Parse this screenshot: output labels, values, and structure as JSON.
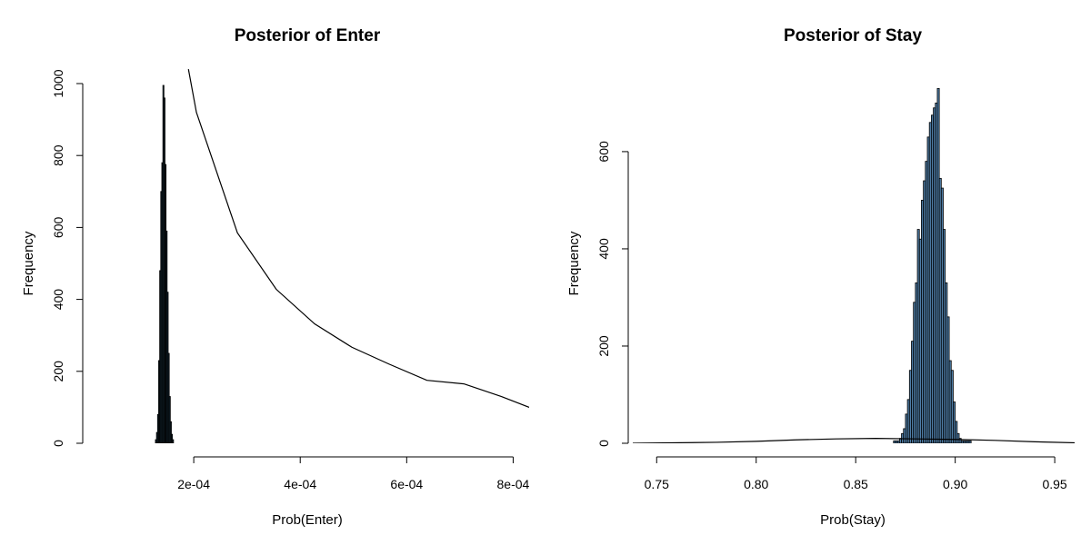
{
  "chart_data": [
    {
      "type": "bar",
      "title": "Posterior of Enter",
      "xlabel": "Prob(Enter)",
      "ylabel": "Frequency",
      "xlim": [
        0,
        0.00083
      ],
      "ylim": [
        0,
        1000
      ],
      "x_ticks": [
        {
          "value": 0.0002,
          "label": "2e-04"
        },
        {
          "value": 0.0004,
          "label": "4e-04"
        },
        {
          "value": 0.0006,
          "label": "6e-04"
        },
        {
          "value": 0.0008,
          "label": "8e-04"
        }
      ],
      "y_ticks": [
        {
          "value": 0,
          "label": "0"
        },
        {
          "value": 200,
          "label": "200"
        },
        {
          "value": 400,
          "label": "400"
        },
        {
          "value": 600,
          "label": "600"
        },
        {
          "value": 800,
          "label": "800"
        },
        {
          "value": 1000,
          "label": "1000"
        }
      ],
      "bar_fill": "#1e3a4a",
      "histogram": {
        "bin_width": 2e-06,
        "bins": [
          {
            "x": 0.000128,
            "count": 10
          },
          {
            "x": 0.00013,
            "count": 30
          },
          {
            "x": 0.000132,
            "count": 80
          },
          {
            "x": 0.000134,
            "count": 230
          },
          {
            "x": 0.000136,
            "count": 480
          },
          {
            "x": 0.000138,
            "count": 700
          },
          {
            "x": 0.00014,
            "count": 780
          },
          {
            "x": 0.000142,
            "count": 995
          },
          {
            "x": 0.000144,
            "count": 960
          },
          {
            "x": 0.000146,
            "count": 775
          },
          {
            "x": 0.000148,
            "count": 590
          },
          {
            "x": 0.00015,
            "count": 420
          },
          {
            "x": 0.000152,
            "count": 250
          },
          {
            "x": 0.000154,
            "count": 130
          },
          {
            "x": 0.000156,
            "count": 60
          },
          {
            "x": 0.000158,
            "count": 25
          },
          {
            "x": 0.00016,
            "count": 10
          }
        ]
      },
      "line": {
        "x": [
          0.00019,
          0.000205,
          0.000282,
          0.000355,
          0.000427,
          0.000497,
          0.000567,
          0.000638,
          0.000708,
          0.000778,
          0.00083
        ],
        "y": [
          1040,
          920,
          585,
          428,
          332,
          267,
          220,
          175,
          165,
          130,
          100
        ]
      }
    },
    {
      "type": "bar",
      "title": "Posterior of Stay",
      "xlabel": "Prob(Stay)",
      "ylabel": "Frequency",
      "xlim": [
        0.738,
        0.96
      ],
      "ylim": [
        0,
        740
      ],
      "x_ticks": [
        {
          "value": 0.75,
          "label": "0.75"
        },
        {
          "value": 0.8,
          "label": "0.80"
        },
        {
          "value": 0.85,
          "label": "0.85"
        },
        {
          "value": 0.9,
          "label": "0.90"
        },
        {
          "value": 0.95,
          "label": "0.95"
        }
      ],
      "y_ticks": [
        {
          "value": 0,
          "label": "0"
        },
        {
          "value": 200,
          "label": "200"
        },
        {
          "value": 400,
          "label": "400"
        },
        {
          "value": 600,
          "label": "600"
        }
      ],
      "bar_fill": "#4f7ea8",
      "histogram": {
        "bin_width": 0.001,
        "bins": [
          {
            "x": 0.869,
            "count": 5
          },
          {
            "x": 0.87,
            "count": 5
          },
          {
            "x": 0.871,
            "count": 5
          },
          {
            "x": 0.872,
            "count": 10
          },
          {
            "x": 0.873,
            "count": 20
          },
          {
            "x": 0.874,
            "count": 30
          },
          {
            "x": 0.875,
            "count": 60
          },
          {
            "x": 0.876,
            "count": 90
          },
          {
            "x": 0.877,
            "count": 150
          },
          {
            "x": 0.878,
            "count": 210
          },
          {
            "x": 0.879,
            "count": 290
          },
          {
            "x": 0.88,
            "count": 330
          },
          {
            "x": 0.881,
            "count": 440
          },
          {
            "x": 0.882,
            "count": 420
          },
          {
            "x": 0.883,
            "count": 500
          },
          {
            "x": 0.884,
            "count": 540
          },
          {
            "x": 0.885,
            "count": 580
          },
          {
            "x": 0.886,
            "count": 630
          },
          {
            "x": 0.887,
            "count": 660
          },
          {
            "x": 0.888,
            "count": 675
          },
          {
            "x": 0.889,
            "count": 690
          },
          {
            "x": 0.89,
            "count": 700
          },
          {
            "x": 0.891,
            "count": 730
          },
          {
            "x": 0.892,
            "count": 545
          },
          {
            "x": 0.893,
            "count": 525
          },
          {
            "x": 0.894,
            "count": 440
          },
          {
            "x": 0.895,
            "count": 330
          },
          {
            "x": 0.896,
            "count": 260
          },
          {
            "x": 0.897,
            "count": 170
          },
          {
            "x": 0.898,
            "count": 150
          },
          {
            "x": 0.899,
            "count": 85
          },
          {
            "x": 0.9,
            "count": 45
          },
          {
            "x": 0.901,
            "count": 20
          },
          {
            "x": 0.902,
            "count": 10
          },
          {
            "x": 0.903,
            "count": 5
          },
          {
            "x": 0.904,
            "count": 5
          },
          {
            "x": 0.905,
            "count": 5
          },
          {
            "x": 0.906,
            "count": 5
          },
          {
            "x": 0.907,
            "count": 5
          }
        ]
      },
      "line": {
        "x": [
          0.738,
          0.78,
          0.8,
          0.82,
          0.84,
          0.86,
          0.88,
          0.9,
          0.92,
          0.94,
          0.96
        ],
        "y": [
          0,
          2,
          4,
          7,
          9,
          10,
          9,
          8,
          6,
          3,
          1
        ]
      }
    }
  ]
}
